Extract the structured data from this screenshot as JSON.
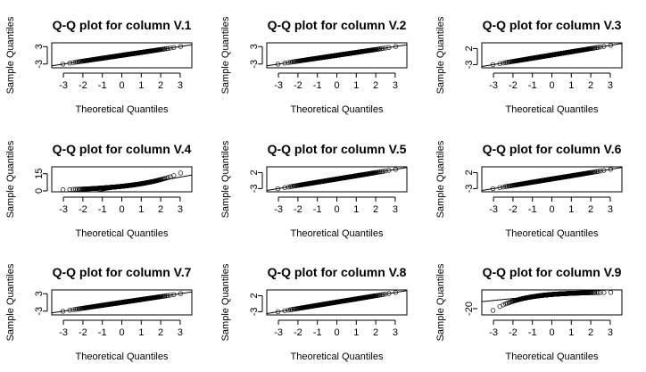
{
  "chart_data": [
    {
      "type": "scatter",
      "title": "Q-Q plot for column V.1",
      "xlabel": "Theoretical Quantiles",
      "ylabel": "Sample Quantiles",
      "xticks": [
        -3,
        -2,
        -1,
        0,
        1,
        2,
        3
      ],
      "yticks": [
        -3,
        3
      ],
      "xlim": [
        -3.6,
        3.6
      ],
      "ylim": [
        -4.3,
        4.3
      ],
      "curve": "normal",
      "ref_line": {
        "intercept": 0,
        "slope": 1
      }
    },
    {
      "type": "scatter",
      "title": "Q-Q plot for column V.2",
      "xlabel": "Theoretical Quantiles",
      "ylabel": "Sample Quantiles",
      "xticks": [
        -3,
        -2,
        -1,
        0,
        1,
        2,
        3
      ],
      "yticks": [
        -3,
        3
      ],
      "xlim": [
        -3.6,
        3.6
      ],
      "ylim": [
        -4.3,
        4.3
      ],
      "curve": "normal",
      "ref_line": {
        "intercept": 0,
        "slope": 1
      }
    },
    {
      "type": "scatter",
      "title": "Q-Q plot for column V.3",
      "xlabel": "Theoretical Quantiles",
      "ylabel": "Sample Quantiles",
      "xticks": [
        -3,
        -2,
        -1,
        0,
        1,
        2,
        3
      ],
      "yticks": [
        -3,
        2
      ],
      "xlim": [
        -3.6,
        3.6
      ],
      "ylim": [
        -4.0,
        3.8
      ],
      "curve": "normal",
      "ref_line": {
        "intercept": 0,
        "slope": 1
      }
    },
    {
      "type": "scatter",
      "title": "Q-Q plot for column V.4",
      "xlabel": "Theoretical Quantiles",
      "ylabel": "Sample Quantiles",
      "xticks": [
        -3,
        -2,
        -1,
        0,
        1,
        2,
        3
      ],
      "yticks": [
        0,
        15
      ],
      "xlim": [
        -3.6,
        3.6
      ],
      "ylim": [
        -0.8,
        21
      ],
      "curve": "skewed",
      "ref_line": {
        "intercept": 3,
        "slope": 3
      }
    },
    {
      "type": "scatter",
      "title": "Q-Q plot for column V.5",
      "xlabel": "Theoretical Quantiles",
      "ylabel": "Sample Quantiles",
      "xticks": [
        -3,
        -2,
        -1,
        0,
        1,
        2,
        3
      ],
      "yticks": [
        -3,
        2
      ],
      "xlim": [
        -3.6,
        3.6
      ],
      "ylim": [
        -4.0,
        3.8
      ],
      "curve": "normal",
      "ref_line": {
        "intercept": 0,
        "slope": 1
      }
    },
    {
      "type": "scatter",
      "title": "Q-Q plot for column V.6",
      "xlabel": "Theoretical Quantiles",
      "ylabel": "Sample Quantiles",
      "xticks": [
        -3,
        -2,
        -1,
        0,
        1,
        2,
        3
      ],
      "yticks": [
        -3,
        2
      ],
      "xlim": [
        -3.6,
        3.6
      ],
      "ylim": [
        -4.0,
        3.8
      ],
      "curve": "normal",
      "ref_line": {
        "intercept": 0,
        "slope": 1
      }
    },
    {
      "type": "scatter",
      "title": "Q-Q plot for column V.7",
      "xlabel": "Theoretical Quantiles",
      "ylabel": "Sample Quantiles",
      "xticks": [
        -3,
        -2,
        -1,
        0,
        1,
        2,
        3
      ],
      "yticks": [
        -3,
        3
      ],
      "xlim": [
        -3.6,
        3.6
      ],
      "ylim": [
        -4.3,
        4.3
      ],
      "curve": "normal",
      "ref_line": {
        "intercept": 0,
        "slope": 1
      }
    },
    {
      "type": "scatter",
      "title": "Q-Q plot for column V.8",
      "xlabel": "Theoretical Quantiles",
      "ylabel": "Sample Quantiles",
      "xticks": [
        -3,
        -2,
        -1,
        0,
        1,
        2,
        3
      ],
      "yticks": [
        -3,
        2
      ],
      "xlim": [
        -3.6,
        3.6
      ],
      "ylim": [
        -4.0,
        3.8
      ],
      "curve": "normal",
      "ref_line": {
        "intercept": 0,
        "slope": 1
      }
    },
    {
      "type": "scatter",
      "title": "Q-Q plot for column V.9",
      "xlabel": "Theoretical Quantiles",
      "ylabel": "Sample Quantiles",
      "xticks": [
        -3,
        -2,
        -1,
        0,
        1,
        2,
        3
      ],
      "yticks": [
        -20
      ],
      "xlim": [
        -3.6,
        3.6
      ],
      "ylim": [
        -28,
        4
      ],
      "curve": "left-skewed",
      "ref_line": {
        "intercept": -2,
        "slope": 2.5
      }
    }
  ]
}
